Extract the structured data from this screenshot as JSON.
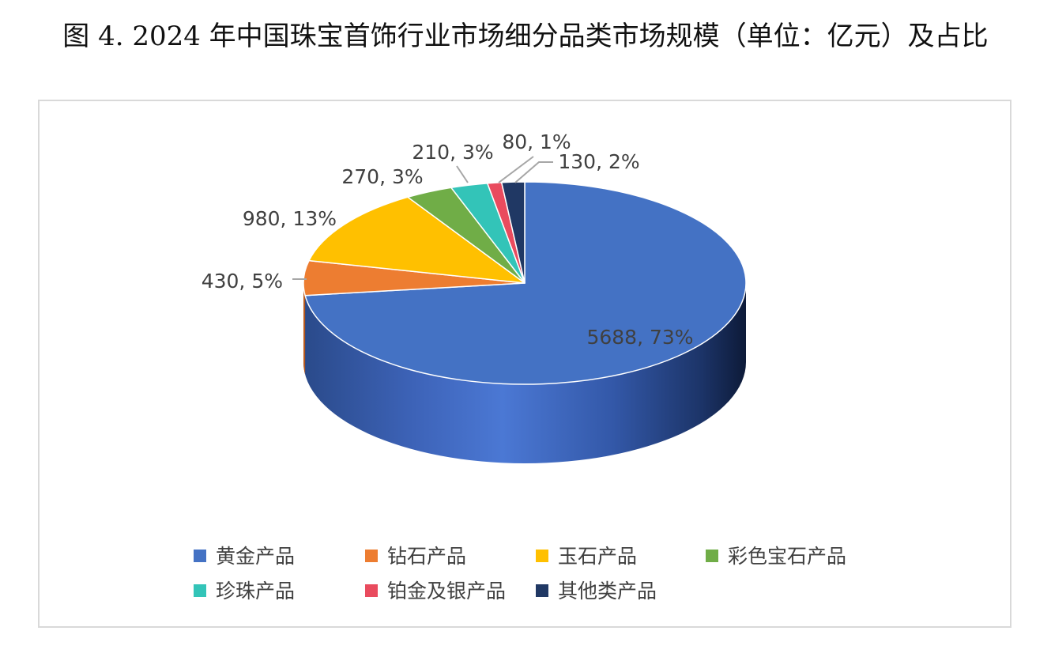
{
  "page": {
    "title": "图 4. 2024 年中国珠宝首饰行业市场细分品类市场规模（单位：亿元）及占比"
  },
  "chart_data": {
    "type": "pie",
    "style": "3d",
    "title": "图 4. 2024 年中国珠宝首饰行业市场细分品类市场规模（单位：亿元）及占比",
    "unit": "亿元",
    "legend_position": "bottom",
    "categories": [
      "黄金产品",
      "钻石产品",
      "玉石产品",
      "彩色宝石产品",
      "珍珠产品",
      "铂金及银产品",
      "其他类产品"
    ],
    "values": [
      5688,
      430,
      980,
      270,
      210,
      80,
      130
    ],
    "percentages": [
      73,
      5,
      13,
      3,
      3,
      1,
      2
    ],
    "data_labels": [
      "5688, 73%",
      "430, 5%",
      "980, 13%",
      "270, 3%",
      "210, 3%",
      "80, 1%",
      "130, 2%"
    ],
    "colors": [
      "#4472C4",
      "#ED7D31",
      "#FFC000",
      "#70AD47",
      "#33C4B8",
      "#E94B5E",
      "#203864"
    ]
  }
}
